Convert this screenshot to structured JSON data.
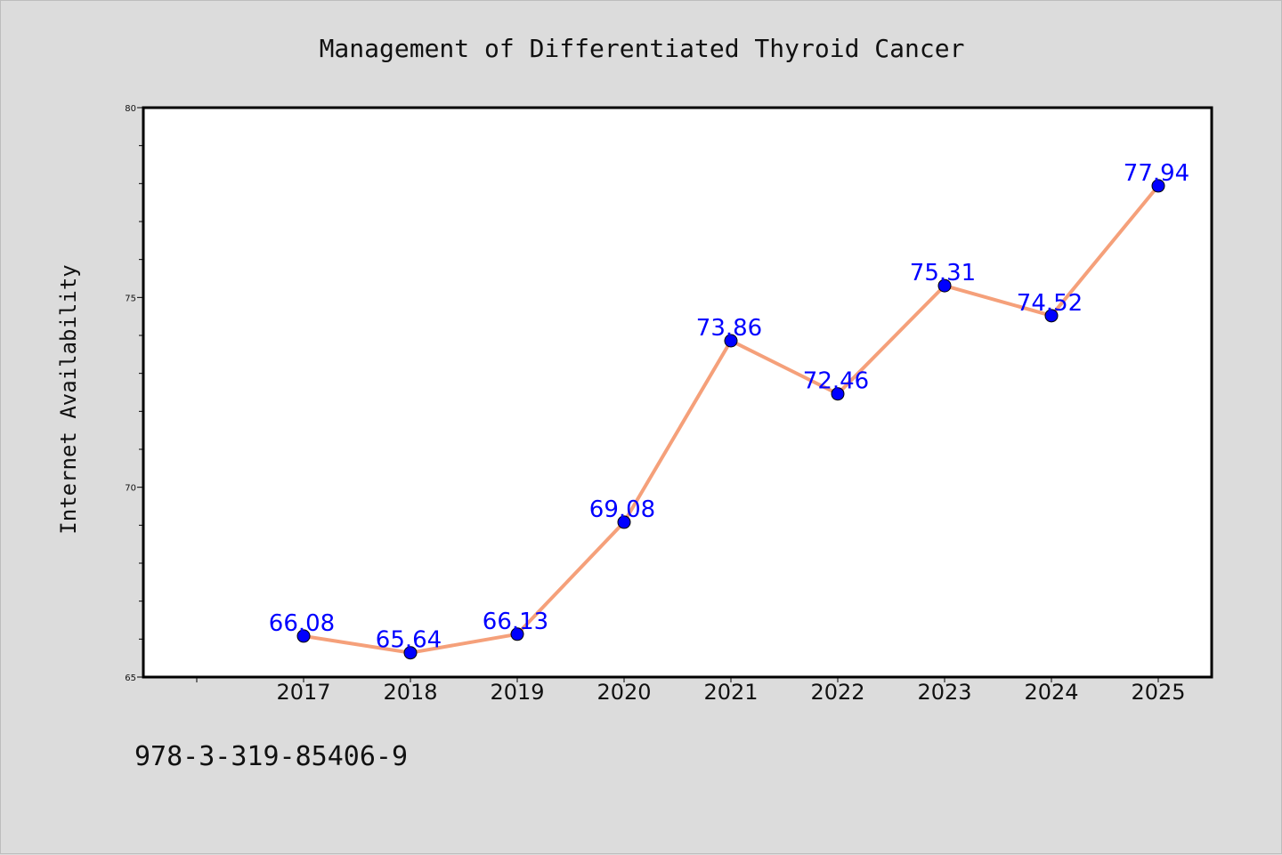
{
  "footer": {
    "code": "978-3-319-85406-9"
  },
  "colors": {
    "background": "#dcdcdc",
    "plot_bg": "#ffffff",
    "line": "#f5a07a",
    "marker": "#0000ff",
    "label": "#0000ff"
  },
  "chart_data": {
    "type": "line",
    "title": "Management of Differentiated Thyroid Cancer",
    "xlabel": "",
    "ylabel": "Internet Availability",
    "categories": [
      "2017",
      "2018",
      "2019",
      "2020",
      "2021",
      "2022",
      "2023",
      "2024",
      "2025"
    ],
    "series": [
      {
        "values": [
          66.08,
          65.64,
          66.13,
          69.08,
          73.86,
          72.46,
          75.31,
          74.52,
          77.94
        ]
      }
    ],
    "data_labels": [
      "66.08",
      "65.64",
      "66.13",
      "69.08",
      "73.86",
      "72.46",
      "75.31",
      "74.52",
      "77.94"
    ],
    "ylim": [
      65,
      80
    ],
    "yticks": [
      65,
      70,
      75,
      80
    ],
    "grid": false,
    "legend": "none"
  }
}
